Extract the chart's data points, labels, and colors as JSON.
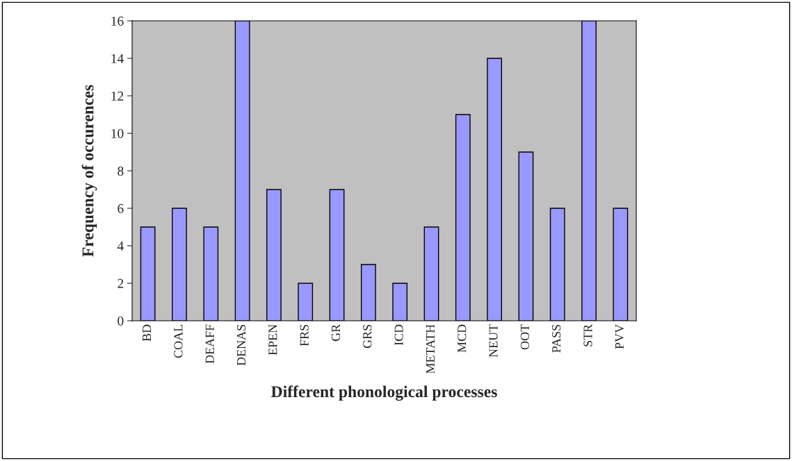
{
  "chart_data": {
    "type": "bar",
    "xlabel": "Different phonological processes",
    "ylabel": "Frequency of occurences",
    "categories": [
      "BD",
      "COAL",
      "DEAFF",
      "DENAS",
      "EPEN",
      "FRS",
      "GR",
      "GRS",
      "ICD",
      "METATH",
      "MCD",
      "NEUT",
      "OOT",
      "PASS",
      "STR",
      "PVV"
    ],
    "values": [
      5,
      6,
      5,
      16,
      7,
      2,
      7,
      3,
      2,
      5,
      11,
      14,
      9,
      6,
      16,
      6
    ],
    "color": "#9999ff",
    "ylim": [
      0,
      16
    ],
    "yticks": [
      0,
      2,
      4,
      6,
      8,
      10,
      12,
      14,
      16
    ],
    "grid": false,
    "legend": false
  }
}
